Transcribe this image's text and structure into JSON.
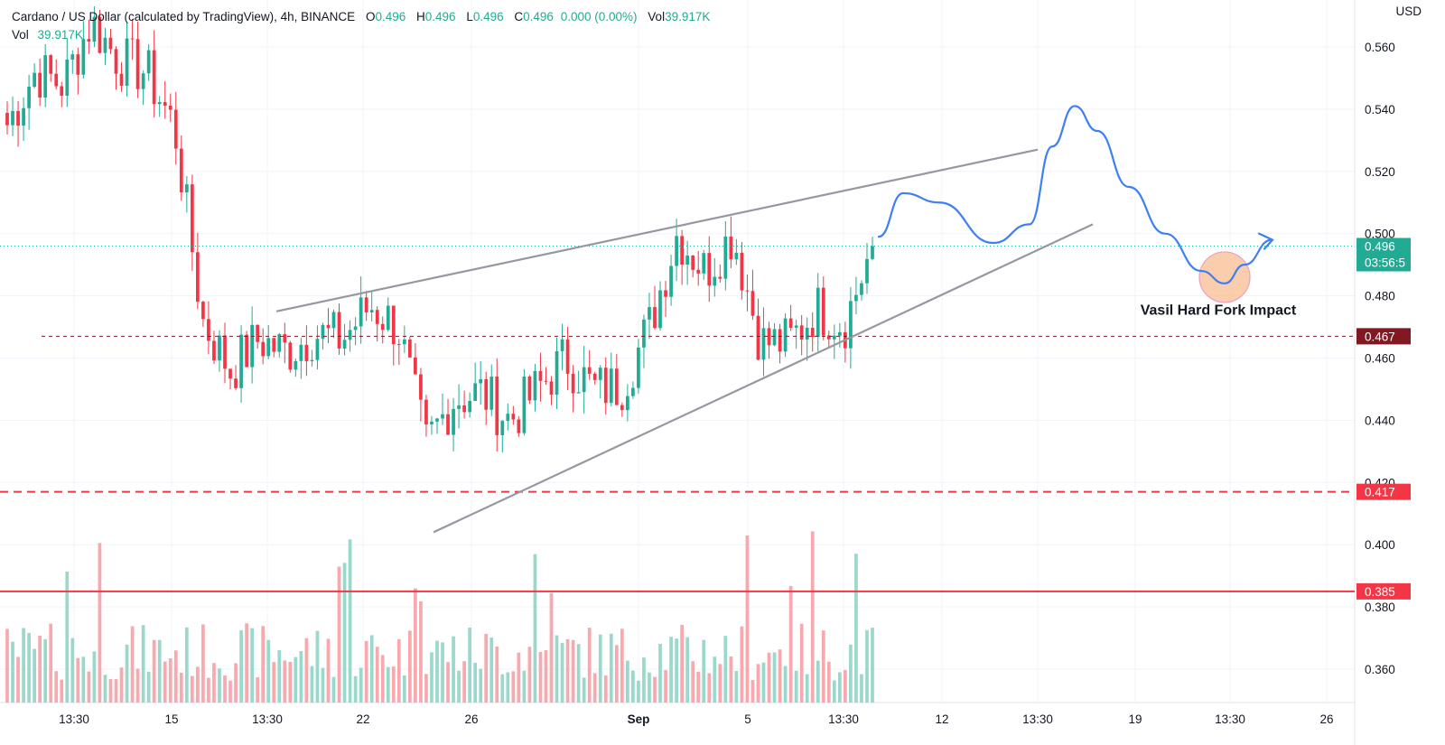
{
  "legend": {
    "symbol": "Cardano / US Dollar (calculated by TradingView), 4h, BINANCE",
    "o_label": "O",
    "o_value": "0.496",
    "h_label": "H",
    "h_value": "0.496",
    "l_label": "L",
    "l_value": "0.496",
    "c_label": "C",
    "c_value": "0.496",
    "change": "0.000 (0.00%)",
    "vol_label": "Vol",
    "vol_value": "39.917K",
    "vol2_label": "Vol",
    "vol2_value": "39.917K"
  },
  "currency": "USD",
  "colors": {
    "up": "#22ab94",
    "down": "#f23645",
    "up_vol": "#9bd8cc",
    "down_vol": "#f7a9ae",
    "trend": "#9598a1",
    "projection": "#3d7ff5",
    "circle": "#f8b98a"
  },
  "chart_data": {
    "type": "candlestick",
    "title": "Cardano / US Dollar (calculated by TradingView), 4h, BINANCE",
    "ylabel": "USD",
    "y_ticks": [
      "0.560",
      "0.540",
      "0.520",
      "0.500",
      "0.480",
      "0.460",
      "0.440",
      "0.420",
      "0.400",
      "0.380",
      "0.360"
    ],
    "x_ticks": [
      "13:30",
      "15",
      "13:30",
      "22",
      "26",
      "Sep",
      "5",
      "13:30",
      "12",
      "13:30",
      "19",
      "13:30",
      "26"
    ],
    "ylim": [
      0.351,
      0.574
    ],
    "anchors": [
      0.535,
      0.552,
      0.548,
      0.568,
      0.556,
      0.552,
      0.534,
      0.472,
      0.456,
      0.466,
      0.462,
      0.468,
      0.466,
      0.477,
      0.47,
      0.432,
      0.447,
      0.449,
      0.44,
      0.45,
      0.46,
      0.45,
      0.451,
      0.47,
      0.5,
      0.488,
      0.5,
      0.465,
      0.465,
      0.476,
      0.471,
      0.496
    ],
    "candle_count": 160,
    "volume_peak": "39.917K",
    "price_tags": [
      {
        "label": "0.496",
        "time": "03:56:5",
        "color": "#22ab94"
      },
      {
        "label": "0.467",
        "color": "#801922"
      },
      {
        "label": "0.417",
        "color": "#f23645"
      },
      {
        "label": "0.385",
        "color": "#f23645"
      }
    ],
    "levels": [
      {
        "value": 0.467,
        "style": "dotted",
        "color": "#801922"
      },
      {
        "value": 0.417,
        "style": "dashed",
        "color": "#f23645"
      },
      {
        "value": 0.385,
        "style": "solid",
        "color": "#f23645"
      },
      {
        "value": 0.496,
        "style": "dotted",
        "color": "#22ab94"
      }
    ],
    "annotations": [
      {
        "text": "Vasil Hard Fork Impact"
      }
    ]
  }
}
